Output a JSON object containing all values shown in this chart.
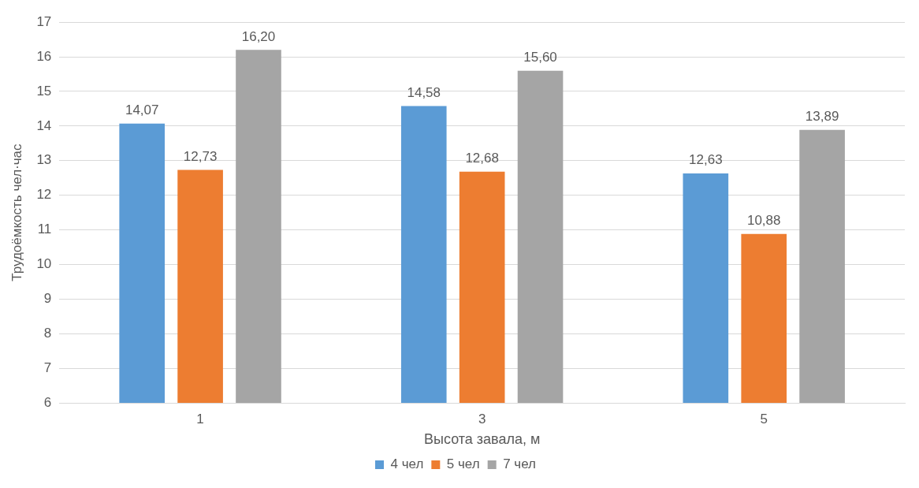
{
  "chart_data": {
    "type": "bar",
    "xlabel": "Высота завала, м",
    "ylabel": "Трудоёмкость чел·час",
    "categories": [
      "1",
      "3",
      "5"
    ],
    "series": [
      {
        "name": "4 чел",
        "color": "#5b9bd5",
        "values": [
          14.07,
          14.58,
          12.63
        ],
        "value_labels": [
          "14,07",
          "14,58",
          "12,63"
        ]
      },
      {
        "name": "5 чел",
        "color": "#ed7d31",
        "values": [
          12.73,
          12.68,
          10.88
        ],
        "value_labels": [
          "12,73",
          "12,68",
          "10,88"
        ]
      },
      {
        "name": "7 чел",
        "color": "#a5a5a5",
        "values": [
          16.2,
          15.6,
          13.89
        ],
        "value_labels": [
          "16,20",
          "15,60",
          "13,89"
        ]
      }
    ],
    "ylim": [
      6,
      17
    ],
    "yticks": [
      6,
      7,
      8,
      9,
      10,
      11,
      12,
      13,
      14,
      15,
      16,
      17
    ],
    "grid": "y",
    "legend": "bottom"
  }
}
